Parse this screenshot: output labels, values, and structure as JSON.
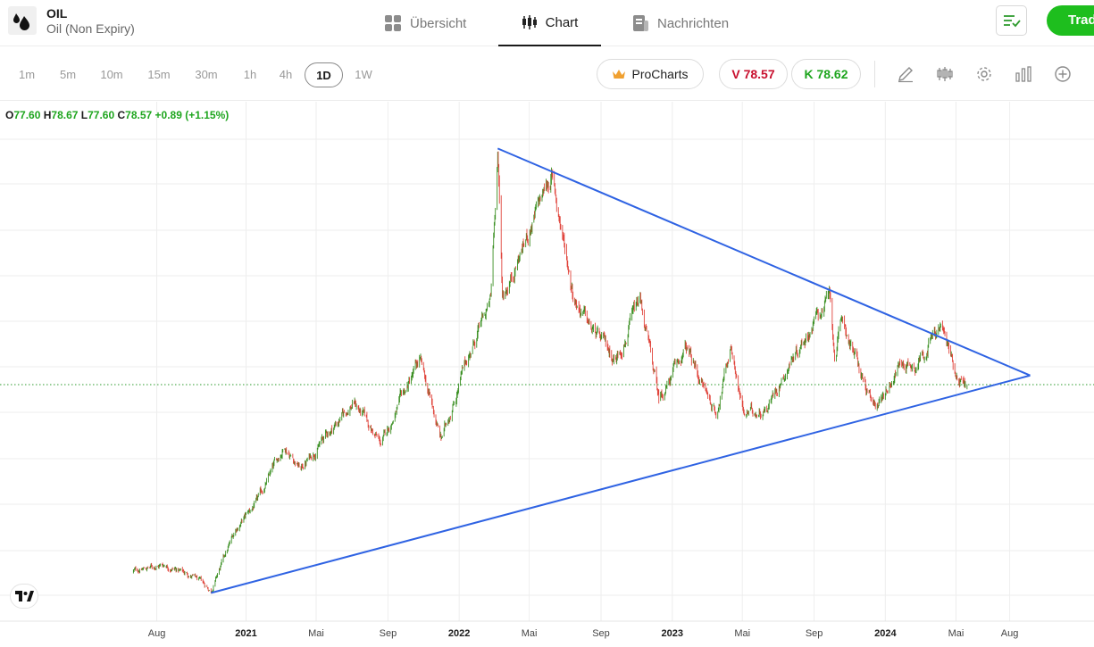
{
  "header": {
    "symbol": "OIL",
    "name": "Oil (Non Expiry)",
    "tabs": [
      {
        "label": "Übersicht",
        "icon": "grid-icon"
      },
      {
        "label": "Chart",
        "icon": "candlestick-icon"
      },
      {
        "label": "Nachrichten",
        "icon": "newspaper-icon"
      }
    ],
    "active_tab": "Chart",
    "trade_label": "Trad"
  },
  "toolbar": {
    "timeframes": [
      "1m",
      "5m",
      "10m",
      "15m",
      "30m",
      "1h",
      "4h",
      "1D",
      "1W"
    ],
    "active_timeframe": "1D",
    "procharts_label": "ProCharts",
    "sell_label": "V 78.57",
    "buy_label": "K 78.62",
    "tools": [
      "pencil-icon",
      "candles-icon",
      "gear-icon",
      "bar-chart-icon",
      "plus-circle-icon"
    ]
  },
  "ohlc": {
    "o_label": "O",
    "o": "77.60",
    "h_label": "H",
    "h": "78.67",
    "l_label": "L",
    "l": "77.60",
    "c_label": "C",
    "c": "78.57",
    "change": "+0.89 (+1.15%)"
  },
  "chart_data": {
    "type": "candlestick",
    "symbol": "OIL",
    "timeframe": "1D",
    "x_tick_labels": [
      "Aug",
      "2021",
      "Mai",
      "Sep",
      "2022",
      "Mai",
      "Sep",
      "2023",
      "Mai",
      "Sep",
      "2024",
      "Mai",
      "Aug"
    ],
    "year_ticks": [
      "2021",
      "2022",
      "2023",
      "2024"
    ],
    "last_close": 78.57,
    "close_path": [
      {
        "date": "2020-06-20",
        "close": 39.5
      },
      {
        "date": "2020-08-15",
        "close": 41.0
      },
      {
        "date": "2020-10-01",
        "close": 38.5
      },
      {
        "date": "2020-11-02",
        "close": 35.5
      },
      {
        "date": "2020-12-15",
        "close": 48.5
      },
      {
        "date": "2021-01-20",
        "close": 54.0
      },
      {
        "date": "2021-03-08",
        "close": 66.0
      },
      {
        "date": "2021-04-05",
        "close": 61.0
      },
      {
        "date": "2021-05-15",
        "close": 67.5
      },
      {
        "date": "2021-07-05",
        "close": 75.0
      },
      {
        "date": "2021-08-20",
        "close": 66.0
      },
      {
        "date": "2021-10-25",
        "close": 83.5
      },
      {
        "date": "2021-12-01",
        "close": 67.0
      },
      {
        "date": "2022-01-15",
        "close": 84.0
      },
      {
        "date": "2022-02-24",
        "close": 96.0
      },
      {
        "date": "2022-03-08",
        "close": 128.0
      },
      {
        "date": "2022-03-16",
        "close": 97.0
      },
      {
        "date": "2022-04-12",
        "close": 105.0
      },
      {
        "date": "2022-06-08",
        "close": 122.5
      },
      {
        "date": "2022-07-15",
        "close": 98.0
      },
      {
        "date": "2022-08-15",
        "close": 90.0
      },
      {
        "date": "2022-09-26",
        "close": 84.0
      },
      {
        "date": "2022-11-07",
        "close": 96.0
      },
      {
        "date": "2022-12-09",
        "close": 75.5
      },
      {
        "date": "2023-01-25",
        "close": 86.0
      },
      {
        "date": "2023-03-17",
        "close": 72.5
      },
      {
        "date": "2023-04-12",
        "close": 87.0
      },
      {
        "date": "2023-05-04",
        "close": 72.0
      },
      {
        "date": "2023-06-12",
        "close": 74.0
      },
      {
        "date": "2023-07-31",
        "close": 85.5
      },
      {
        "date": "2023-09-27",
        "close": 97.0
      },
      {
        "date": "2023-10-06",
        "close": 84.5
      },
      {
        "date": "2023-10-20",
        "close": 92.0
      },
      {
        "date": "2023-12-12",
        "close": 73.0
      },
      {
        "date": "2024-01-26",
        "close": 83.0
      },
      {
        "date": "2024-02-21",
        "close": 83.0
      },
      {
        "date": "2024-04-05",
        "close": 91.0
      },
      {
        "date": "2024-04-30",
        "close": 81.5
      },
      {
        "date": "2024-05-20",
        "close": 78.57
      }
    ],
    "trendlines": [
      {
        "from": {
          "date": "2022-03-08",
          "value": 128.0
        },
        "to": {
          "date": "2024-09-05",
          "value": 80.5
        }
      },
      {
        "from": {
          "date": "2020-11-02",
          "value": 35.0
        },
        "to": {
          "date": "2024-09-05",
          "value": 80.5
        }
      }
    ],
    "grid": true,
    "last_price_line": "dotted"
  },
  "colors": {
    "up": "#3a8f22",
    "down": "#e0433a",
    "trendline": "#2f63e3",
    "last_price_line": "#2e9b2e",
    "grid": "#eeeeee",
    "trade_button": "#1ebe1e"
  }
}
